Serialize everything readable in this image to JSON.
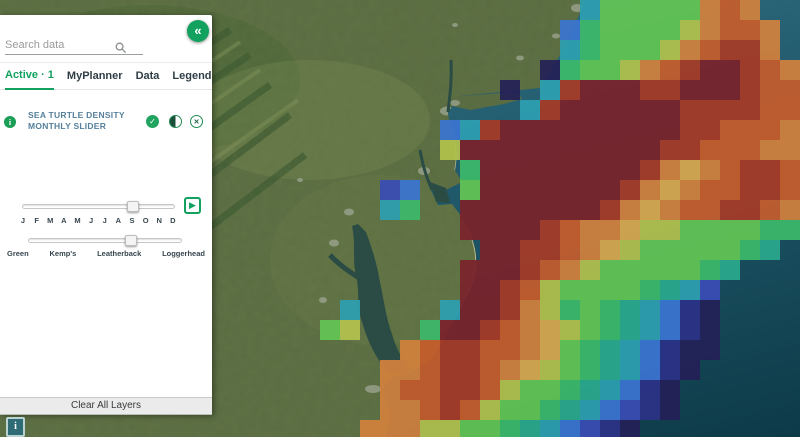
{
  "theme": {
    "accent_green": "#12a15e",
    "title_blue": "#56809c",
    "tab_inactive": "#2f3e46",
    "info_btn_bg": "#2e6b75"
  },
  "panel": {
    "search": {
      "placeholder": "Search data"
    },
    "tabs": [
      {
        "label": "Active · 1",
        "active": true
      },
      {
        "label": "MyPlanner",
        "active": false
      },
      {
        "label": "Data",
        "active": false
      },
      {
        "label": "Legend",
        "active": false
      }
    ],
    "layer": {
      "title": "SEA TURTLE DENSITY MONTHLY SLIDER",
      "months": [
        "J",
        "F",
        "M",
        "A",
        "M",
        "J",
        "J",
        "A",
        "S",
        "O",
        "N",
        "D"
      ],
      "selected_month_index": 8,
      "species": [
        "Green",
        "Kemp's",
        "Leatherback",
        "Loggerhead"
      ],
      "selected_species_index": 2
    },
    "clear_button_label": "Clear All Layers"
  },
  "map_info_button_label": "i",
  "map": {
    "ocean": {
      "top": "#2e6b7f",
      "mid": "#1d5566",
      "deep": "#0d3a48"
    },
    "land": {
      "base": "#5a6c41",
      "ridge": "#3e5a31",
      "light": "#7e9057",
      "water": "#2b4c45",
      "urban": "#9aa28e",
      "sand": "#cfc49b"
    },
    "heatmap": {
      "cell_size": 20,
      "opacity": 0.93,
      "palette": {
        "M": "#7b222b",
        "R": "#a73a26",
        "O": "#c65c2c",
        "o": "#d2813c",
        "Y": "#d8a84e",
        "y": "#b3c24c",
        "G": "#63c554",
        "g": "#3cb96b",
        "T": "#2aa98c",
        "C": "#2d9fb0",
        "B": "#3b74d1",
        "b": "#3a4cb5",
        "N": "#2c3187",
        "P": "#242057"
      },
      "grid": [
        ".............................CGGGGGoOo..",
        "............................BgGGGGyoOOo.",
        "............................CgGGGyoORRo.",
        "...........................PgGGyoORMMROo",
        ".........................P.CRMMMRRMMMROO",
        "..........................CRMMMMMMRRRROO",
        "......................BCRMMMMMMMMMRROOOo",
        "......................yMMMMMMMMMMRROOOoo",
        ".......................gMMMMMMMMRoYoORRO",
        "...................bB..GMMMMMMMRoYoOORRO",
        "...................Cg..MMMMMMMRoYoOORROo",
        ".......................MMMMROooYyyGGGGgg",
        "........................MMRROoYyGGGGGgT.",
        ".......................MMMROoyGGGGGgT...",
        ".......................MMROyGGGGgTCb....",
        ".................C....CMMRoygGgTCBNP....",
        "................Gy...gMMROoYyGgTCBNP....",
        "....................oORROOoYGgTCBNPP....",
        "...................ooORROoYyGgTCBNP.....",
        "...................oOORROyGGgTCBNP......",
        "...................ooOROyGGgTCBbNP......",
        "..................oooyyGGgTCBbNP........"
      ]
    }
  }
}
